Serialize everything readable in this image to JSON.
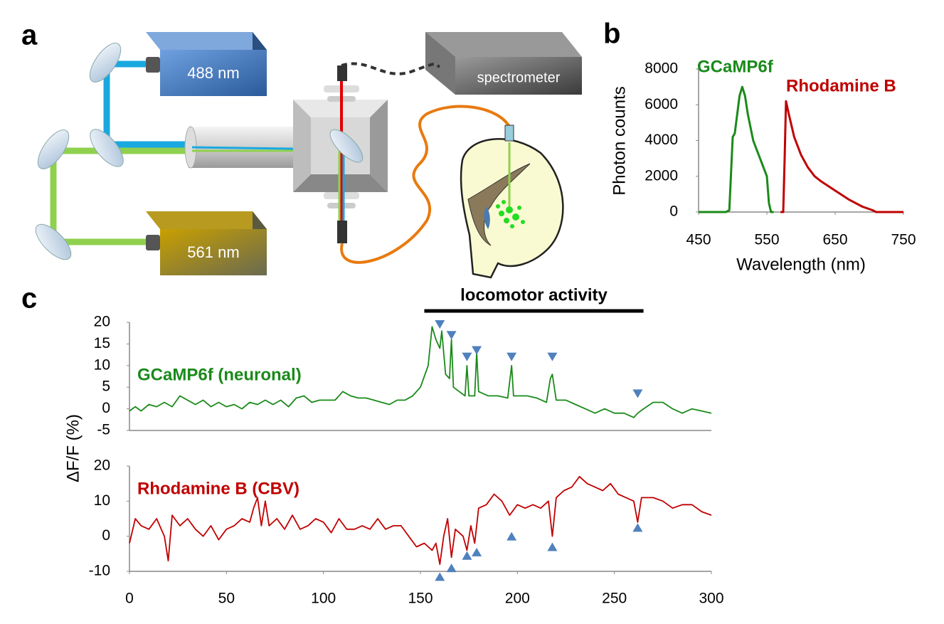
{
  "panels": [
    "a",
    "b",
    "c"
  ],
  "diagram": {
    "labels": [
      "488 nm",
      "561 nm",
      "spectrometer"
    ]
  },
  "chart_data": [
    {
      "type": "line",
      "xlabel": "Wavelength (nm)",
      "ylabel": "Photon counts",
      "xlim": [
        450,
        750
      ],
      "xticks": [
        450,
        550,
        650,
        750
      ],
      "ylim": [
        0,
        8000
      ],
      "yticks": [
        0,
        2000,
        4000,
        6000,
        8000
      ],
      "series": [
        {
          "name": "GCaMP6f",
          "color": "#1a8a1a",
          "x": [
            450,
            490,
            495,
            500,
            503,
            505,
            510,
            514,
            518,
            522,
            530,
            540,
            545,
            550,
            553,
            556,
            560
          ],
          "values": [
            0,
            0,
            100,
            4200,
            4400,
            5000,
            6500,
            7000,
            6500,
            5500,
            4000,
            3000,
            2500,
            2000,
            500,
            0,
            0
          ]
        },
        {
          "name": "Rhodamine B",
          "color": "#c00000",
          "x": [
            570,
            574,
            576,
            578,
            582,
            590,
            600,
            610,
            620,
            630,
            650,
            670,
            690,
            705,
            710,
            750
          ],
          "values": [
            0,
            0,
            3000,
            6200,
            5500,
            4200,
            3200,
            2500,
            2000,
            1700,
            1200,
            700,
            300,
            100,
            0,
            0
          ]
        }
      ]
    },
    {
      "type": "line",
      "ylabel": "ΔF/F (%)",
      "xlim": [
        0,
        300
      ],
      "ylim": [
        -5,
        20
      ],
      "yticks": [
        -5,
        0,
        5,
        10,
        15,
        20
      ],
      "locomotor": {
        "label": "locomotor activity",
        "start": 152,
        "end": 265
      },
      "series": [
        {
          "name": "GCaMP6f (neuronal)",
          "color": "#1a8a1a",
          "x": [
            0,
            3,
            6,
            10,
            14,
            18,
            22,
            26,
            30,
            34,
            38,
            42,
            46,
            50,
            54,
            58,
            62,
            66,
            70,
            74,
            78,
            82,
            86,
            90,
            94,
            98,
            102,
            106,
            110,
            114,
            118,
            122,
            126,
            130,
            134,
            138,
            142,
            146,
            150,
            154,
            156,
            158,
            160,
            161,
            163,
            165,
            166,
            167,
            170,
            173,
            174,
            175,
            178,
            179,
            180,
            185,
            190,
            195,
            197,
            198,
            205,
            210,
            215,
            217,
            218,
            220,
            225,
            230,
            235,
            240,
            245,
            250,
            255,
            260,
            262,
            265,
            270,
            275,
            280,
            285,
            290,
            295,
            300
          ],
          "values": [
            -0.5,
            0.5,
            -0.5,
            1,
            0.5,
            1.5,
            0.5,
            3,
            2,
            1,
            2,
            0.5,
            1.5,
            0.5,
            1,
            0,
            1.5,
            1,
            2,
            1,
            2,
            0.5,
            2.5,
            3,
            1.5,
            2,
            2,
            2,
            4,
            3,
            2.5,
            2.5,
            2,
            1.5,
            1,
            2,
            2,
            3,
            5,
            10,
            19,
            16,
            14,
            18,
            8,
            7,
            16,
            5,
            4,
            3,
            10,
            3,
            3,
            13,
            4,
            3,
            3,
            2.5,
            10,
            3,
            3,
            2.5,
            1.5,
            7,
            8,
            2,
            2,
            1,
            0,
            -1,
            0,
            -1,
            -1,
            -2,
            -1,
            0,
            1.5,
            1.5,
            0,
            -1,
            0,
            -0.5,
            -1
          ]
        }
      ],
      "markers": {
        "color": "#4f81bd",
        "x": [
          160,
          166,
          174,
          179,
          197,
          218,
          262
        ],
        "values": [
          19.5,
          17,
          12,
          13.5,
          12,
          12,
          3.5
        ]
      }
    },
    {
      "type": "line",
      "xlim": [
        0,
        300
      ],
      "xticks": [
        0,
        50,
        100,
        150,
        200,
        250,
        300
      ],
      "ylim": [
        -10,
        20
      ],
      "yticks": [
        -10,
        0,
        10,
        20
      ],
      "series": [
        {
          "name": "Rhodamine B (CBV)",
          "color": "#c00000",
          "x": [
            0,
            3,
            6,
            10,
            14,
            18,
            20,
            22,
            26,
            30,
            34,
            38,
            42,
            46,
            50,
            54,
            58,
            62,
            64,
            66,
            68,
            70,
            72,
            76,
            80,
            84,
            88,
            92,
            96,
            100,
            104,
            108,
            112,
            116,
            120,
            124,
            128,
            132,
            136,
            140,
            144,
            148,
            152,
            156,
            158,
            160,
            162,
            164,
            166,
            168,
            172,
            174,
            176,
            178,
            180,
            184,
            188,
            192,
            196,
            200,
            204,
            208,
            212,
            216,
            218,
            220,
            224,
            228,
            232,
            236,
            240,
            244,
            248,
            252,
            256,
            260,
            262,
            264,
            270,
            275,
            280,
            285,
            290,
            295,
            300
          ],
          "values": [
            -2,
            5,
            3,
            2,
            5,
            0,
            -7,
            6,
            3,
            5,
            2,
            0,
            3,
            -1,
            2,
            3,
            5,
            4,
            8,
            11,
            3,
            10,
            3,
            5,
            2,
            6,
            2,
            3,
            5,
            4,
            1,
            5,
            2,
            2,
            3,
            2,
            5,
            2,
            3,
            3,
            0,
            -3,
            -2,
            -4,
            -2,
            -8,
            0,
            5,
            -6,
            2,
            0,
            -4,
            3,
            -2,
            8,
            9,
            12,
            10,
            6,
            9,
            8,
            9,
            8,
            10,
            0,
            11,
            13,
            14,
            17,
            15,
            14,
            13,
            15,
            12,
            11,
            10,
            4,
            11,
            11,
            10,
            8,
            9,
            9,
            7,
            6
          ]
        }
      ],
      "markers": {
        "color": "#4f81bd",
        "x": [
          160,
          166,
          174,
          179,
          197,
          218,
          262
        ],
        "values": [
          -11.5,
          -9,
          -5.5,
          -4.5,
          0,
          -3,
          2.5
        ]
      }
    }
  ]
}
